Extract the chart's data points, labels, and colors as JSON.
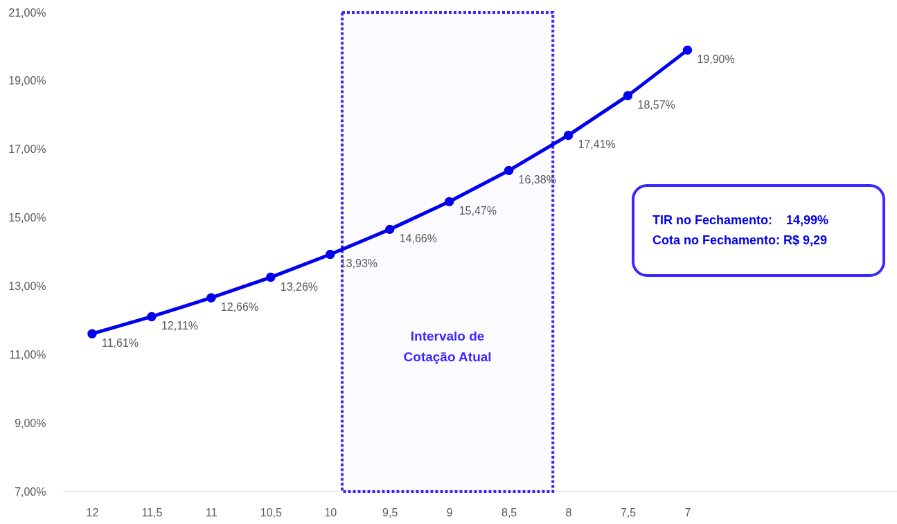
{
  "chart_data": {
    "type": "line",
    "x": [
      12,
      11.5,
      11,
      10.5,
      10,
      9.5,
      9,
      8.5,
      8,
      7.5,
      7
    ],
    "marker": "circle",
    "line_style": "solid",
    "series": [
      {
        "color": "#0000ee",
        "values": [
          11.61,
          12.11,
          12.66,
          13.26,
          13.93,
          14.66,
          15.47,
          16.38,
          17.41,
          18.57,
          19.9
        ],
        "value_labels": [
          "11,61%",
          "12,11%",
          "12,66%",
          "13,26%",
          "13,93%",
          "14,66%",
          "15,47%",
          "16,38%",
          "17,41%",
          "18,57%",
          "19,90%"
        ]
      }
    ],
    "xlim": [
      12.25,
      5.24
    ],
    "xticks": [
      12,
      {
        "value": 11.5,
        "label": "11,5"
      },
      11,
      {
        "value": 10.5,
        "label": "10,5"
      },
      10,
      {
        "value": 9.5,
        "label": "9,5"
      },
      9,
      {
        "value": 8.5,
        "label": "8,5"
      },
      8,
      {
        "value": 7.5,
        "label": "7,5"
      },
      7
    ],
    "ylim": [
      7,
      21
    ],
    "yticks": [
      {
        "value": 7,
        "label": "7,00%"
      },
      {
        "value": 9,
        "label": "9,00%"
      },
      {
        "value": 11,
        "label": "11,00%"
      },
      {
        "value": 13,
        "label": "13,00%"
      },
      {
        "value": 15,
        "label": "15,00%"
      },
      {
        "value": 17,
        "label": "17,00%"
      },
      {
        "value": 19,
        "label": "19,00%"
      },
      {
        "value": 21,
        "label": "21,00%"
      }
    ],
    "bands": [
      {
        "axis": "x",
        "from": 9.9,
        "to": 8.13,
        "label": "Intervalo de\nCotação Atual",
        "color": "#3c28ff"
      }
    ],
    "annotations": [
      "TIR no Fechamento:    14,99%",
      "Cota no Fechamento: R$ 9,29"
    ],
    "grid": false
  }
}
